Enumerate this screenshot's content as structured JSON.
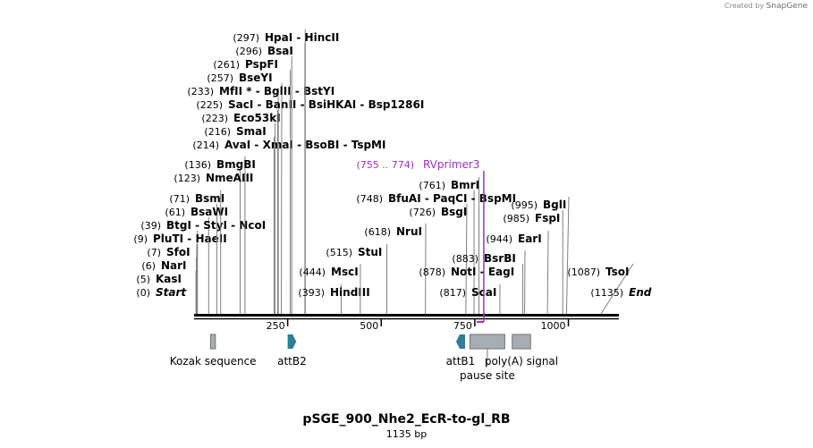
{
  "credit": {
    "prefix": "Created by",
    "brand": "SnapGene"
  },
  "plasmid": {
    "name": "pSGE_900_Nhe2_EcR-to-gl_RB",
    "length_label": "1135 bp",
    "length": 1135
  },
  "ruler": {
    "ticks": [
      250,
      500,
      750,
      1000
    ],
    "tick_labels": [
      "250",
      "500",
      "750",
      "1000"
    ]
  },
  "colors": {
    "backbone": "#000000",
    "primer": "#9b30c8",
    "feature_arrow": "#2e7d99",
    "feature_box": "#a8adb2",
    "leader": "#808080"
  },
  "sites": [
    {
      "pos_label": "(0)",
      "name": "Start",
      "pos": 0,
      "ends": true
    },
    {
      "pos_label": "(5)",
      "name": "KasI",
      "pos": 5
    },
    {
      "pos_label": "(6)",
      "name": "NarI",
      "pos": 6
    },
    {
      "pos_label": "(7)",
      "name": "SfoI",
      "pos": 7
    },
    {
      "pos_label": "(9)",
      "name": "PluTI - HaeII",
      "pos": 9
    },
    {
      "pos_label": "(39)",
      "name": "BtgI - StyI - NcoI",
      "pos": 39
    },
    {
      "pos_label": "(61)",
      "name": "BsaWI",
      "pos": 61
    },
    {
      "pos_label": "(71)",
      "name": "BsmI",
      "pos": 71
    },
    {
      "pos_label": "(123)",
      "name": "NmeAIII",
      "pos": 123
    },
    {
      "pos_label": "(136)",
      "name": "BmgBI",
      "pos": 136
    },
    {
      "pos_label": "(214)",
      "name": "AvaI - XmaI - BsoBI - TspMI",
      "pos": 214
    },
    {
      "pos_label": "(216)",
      "name": "SmaI",
      "pos": 216
    },
    {
      "pos_label": "(223)",
      "name": "Eco53kI",
      "pos": 223
    },
    {
      "pos_label": "(225)",
      "name": "SacI - BanII - BsiHKAI - Bsp1286I",
      "pos": 225
    },
    {
      "pos_label": "(233)",
      "name": "MfII * - BglII - BstYI",
      "pos": 233
    },
    {
      "pos_label": "(257)",
      "name": "BseYI",
      "pos": 257
    },
    {
      "pos_label": "(261)",
      "name": "PspFI",
      "pos": 261
    },
    {
      "pos_label": "(296)",
      "name": "BsaI",
      "pos": 296
    },
    {
      "pos_label": "(297)",
      "name": "HpaI - HincII",
      "pos": 297
    },
    {
      "pos_label": "(393)",
      "name": "HindIII",
      "pos": 393
    },
    {
      "pos_label": "(444)",
      "name": "MscI",
      "pos": 444
    },
    {
      "pos_label": "(515)",
      "name": "StuI",
      "pos": 515
    },
    {
      "pos_label": "(618)",
      "name": "NruI",
      "pos": 618
    },
    {
      "pos_label": "(726)",
      "name": "BsgI",
      "pos": 726
    },
    {
      "pos_label": "(748)",
      "name": "BfuAI - PaqCI - BspMI",
      "pos": 748
    },
    {
      "pos_label": "(761)",
      "name": "BmrI",
      "pos": 761
    },
    {
      "pos_label": "(817)",
      "name": "ScaI",
      "pos": 817
    },
    {
      "pos_label": "(878)",
      "name": "NotI - EagI",
      "pos": 878
    },
    {
      "pos_label": "(883)",
      "name": "BsrBI",
      "pos": 883
    },
    {
      "pos_label": "(944)",
      "name": "EarI",
      "pos": 944
    },
    {
      "pos_label": "(985)",
      "name": "FspI",
      "pos": 985
    },
    {
      "pos_label": "(995)",
      "name": "BglI",
      "pos": 995
    },
    {
      "pos_label": "(1087)",
      "name": "TsoI",
      "pos": 1087
    },
    {
      "pos_label": "(1135)",
      "name": "End",
      "pos": 1135,
      "ends": true
    }
  ],
  "primer": {
    "range_label": "(755 .. 774)",
    "name": "RVprimer3",
    "start": 755,
    "end": 774
  },
  "features": [
    {
      "name": "Kozak sequence",
      "start": 44,
      "end": 57,
      "shape": "box",
      "direction": "none"
    },
    {
      "name": "attB2",
      "start": 250,
      "end": 273,
      "shape": "arrow",
      "direction": "forward"
    },
    {
      "name": "attB1",
      "start": 700,
      "end": 724,
      "shape": "arrow",
      "direction": "reverse"
    },
    {
      "name": "pause site",
      "start": 737,
      "end": 830,
      "shape": "box",
      "direction": "none"
    },
    {
      "name": "poly(A) signal",
      "start": 850,
      "end": 899,
      "shape": "box",
      "direction": "none"
    }
  ]
}
